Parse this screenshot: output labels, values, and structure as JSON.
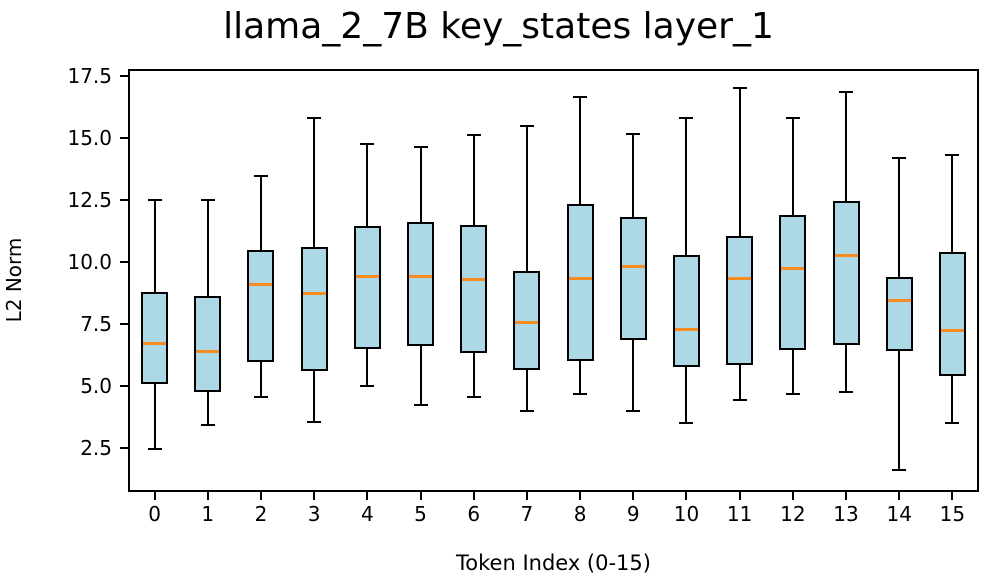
{
  "chart": {
    "title": "llama_2_7B key_states layer_1",
    "xlabel": "Token Index (0-15)",
    "ylabel": "L2 Norm"
  },
  "chart_data": {
    "type": "box",
    "title": "llama_2_7B key_states layer_1",
    "xlabel": "Token Index (0-15)",
    "ylabel": "L2 Norm",
    "categories": [
      "0",
      "1",
      "2",
      "3",
      "4",
      "5",
      "6",
      "7",
      "8",
      "9",
      "10",
      "11",
      "12",
      "13",
      "14",
      "15"
    ],
    "y_tick_labels": [
      "2.5",
      "5.0",
      "7.5",
      "10.0",
      "12.5",
      "15.0",
      "17.5"
    ],
    "y_ticks": [
      2.5,
      5.0,
      7.5,
      10.0,
      12.5,
      15.0,
      17.5
    ],
    "ylim": [
      0.73,
      17.78
    ],
    "grid": false,
    "legend": "none",
    "boxes": [
      {
        "token": 0,
        "whisker_low": 2.45,
        "q1": 5.1,
        "median": 6.7,
        "q3": 8.8,
        "whisker_high": 12.5
      },
      {
        "token": 1,
        "whisker_low": 3.45,
        "q1": 4.75,
        "median": 6.4,
        "q3": 8.65,
        "whisker_high": 12.5
      },
      {
        "token": 2,
        "whisker_low": 4.55,
        "q1": 5.95,
        "median": 9.1,
        "q3": 10.5,
        "whisker_high": 13.45
      },
      {
        "token": 3,
        "whisker_low": 3.55,
        "q1": 5.6,
        "median": 8.75,
        "q3": 10.6,
        "whisker_high": 15.8
      },
      {
        "token": 4,
        "whisker_low": 5.0,
        "q1": 6.5,
        "median": 9.4,
        "q3": 11.45,
        "whisker_high": 14.75
      },
      {
        "token": 5,
        "whisker_low": 4.25,
        "q1": 6.6,
        "median": 9.4,
        "q3": 11.6,
        "whisker_high": 14.65
      },
      {
        "token": 6,
        "whisker_low": 4.55,
        "q1": 6.35,
        "median": 9.3,
        "q3": 11.5,
        "whisker_high": 15.1
      },
      {
        "token": 7,
        "whisker_low": 4.0,
        "q1": 5.65,
        "median": 7.55,
        "q3": 9.65,
        "whisker_high": 15.5
      },
      {
        "token": 8,
        "whisker_low": 4.7,
        "q1": 6.0,
        "median": 9.35,
        "q3": 12.35,
        "whisker_high": 16.65
      },
      {
        "token": 9,
        "whisker_low": 4.0,
        "q1": 6.85,
        "median": 9.8,
        "q3": 11.8,
        "whisker_high": 15.15
      },
      {
        "token": 10,
        "whisker_low": 3.5,
        "q1": 5.75,
        "median": 7.3,
        "q3": 10.3,
        "whisker_high": 15.8
      },
      {
        "token": 11,
        "whisker_low": 4.45,
        "q1": 5.85,
        "median": 9.35,
        "q3": 11.05,
        "whisker_high": 17.0
      },
      {
        "token": 12,
        "whisker_low": 4.7,
        "q1": 6.45,
        "median": 9.75,
        "q3": 11.9,
        "whisker_high": 15.8
      },
      {
        "token": 13,
        "whisker_low": 4.75,
        "q1": 6.65,
        "median": 10.25,
        "q3": 12.45,
        "whisker_high": 16.85
      },
      {
        "token": 14,
        "whisker_low": 1.6,
        "q1": 6.4,
        "median": 8.45,
        "q3": 9.4,
        "whisker_high": 14.2
      },
      {
        "token": 15,
        "whisker_low": 3.5,
        "q1": 5.4,
        "median": 7.25,
        "q3": 10.4,
        "whisker_high": 14.3
      }
    ],
    "colors": {
      "box_fill": "#ADD8E6",
      "box_edge": "#000000",
      "median": "#F68B1F",
      "whisker": "#000000",
      "background": "#FFFFFF"
    }
  }
}
